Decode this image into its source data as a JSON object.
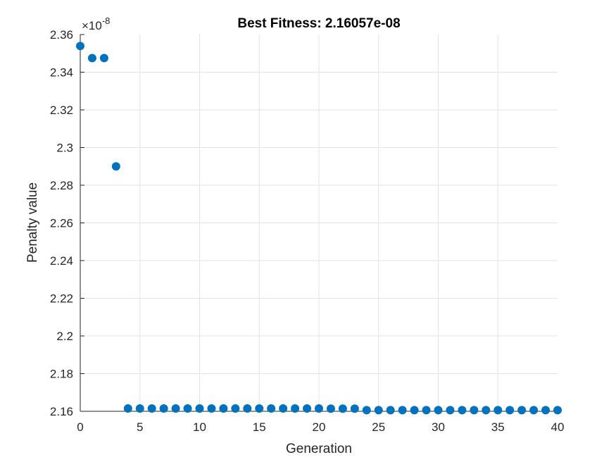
{
  "chart_data": {
    "type": "scatter",
    "title": "Best Fitness: 2.16057e-08",
    "xlabel": "Generation",
    "ylabel": "Penalty value",
    "y_multiplier_base": "×10",
    "y_multiplier_exponent": "-8",
    "xlim": [
      0,
      40
    ],
    "ylim": [
      2.16,
      2.36
    ],
    "x_ticks": [
      "0",
      "5",
      "10",
      "15",
      "20",
      "25",
      "30",
      "35",
      "40"
    ],
    "y_ticks": [
      "2.16",
      "2.18",
      "2.2",
      "2.22",
      "2.24",
      "2.26",
      "2.28",
      "2.3",
      "2.32",
      "2.34",
      "2.36"
    ],
    "grid": true,
    "marker_color": "#0072BD",
    "series": [
      {
        "x": [
          0,
          1,
          2,
          3,
          4,
          5,
          6,
          7,
          8,
          9,
          10,
          11,
          12,
          13,
          14,
          15,
          16,
          17,
          18,
          19,
          20,
          21,
          22,
          23,
          24,
          25,
          26,
          27,
          28,
          29,
          30,
          31,
          32,
          33,
          34,
          35,
          36,
          37,
          38,
          39,
          40
        ],
        "y": [
          2.3539,
          2.3475,
          2.3475,
          2.29,
          2.1615,
          2.1615,
          2.1615,
          2.1615,
          2.1615,
          2.1615,
          2.1615,
          2.1615,
          2.1615,
          2.1615,
          2.1615,
          2.1615,
          2.1615,
          2.1615,
          2.1615,
          2.1615,
          2.1615,
          2.1614,
          2.1614,
          2.1614,
          2.1606,
          2.1606,
          2.1606,
          2.1606,
          2.1606,
          2.1606,
          2.1606,
          2.1606,
          2.1606,
          2.1606,
          2.1606,
          2.1606,
          2.1606,
          2.1606,
          2.1606,
          2.1606,
          2.1606
        ]
      }
    ]
  }
}
